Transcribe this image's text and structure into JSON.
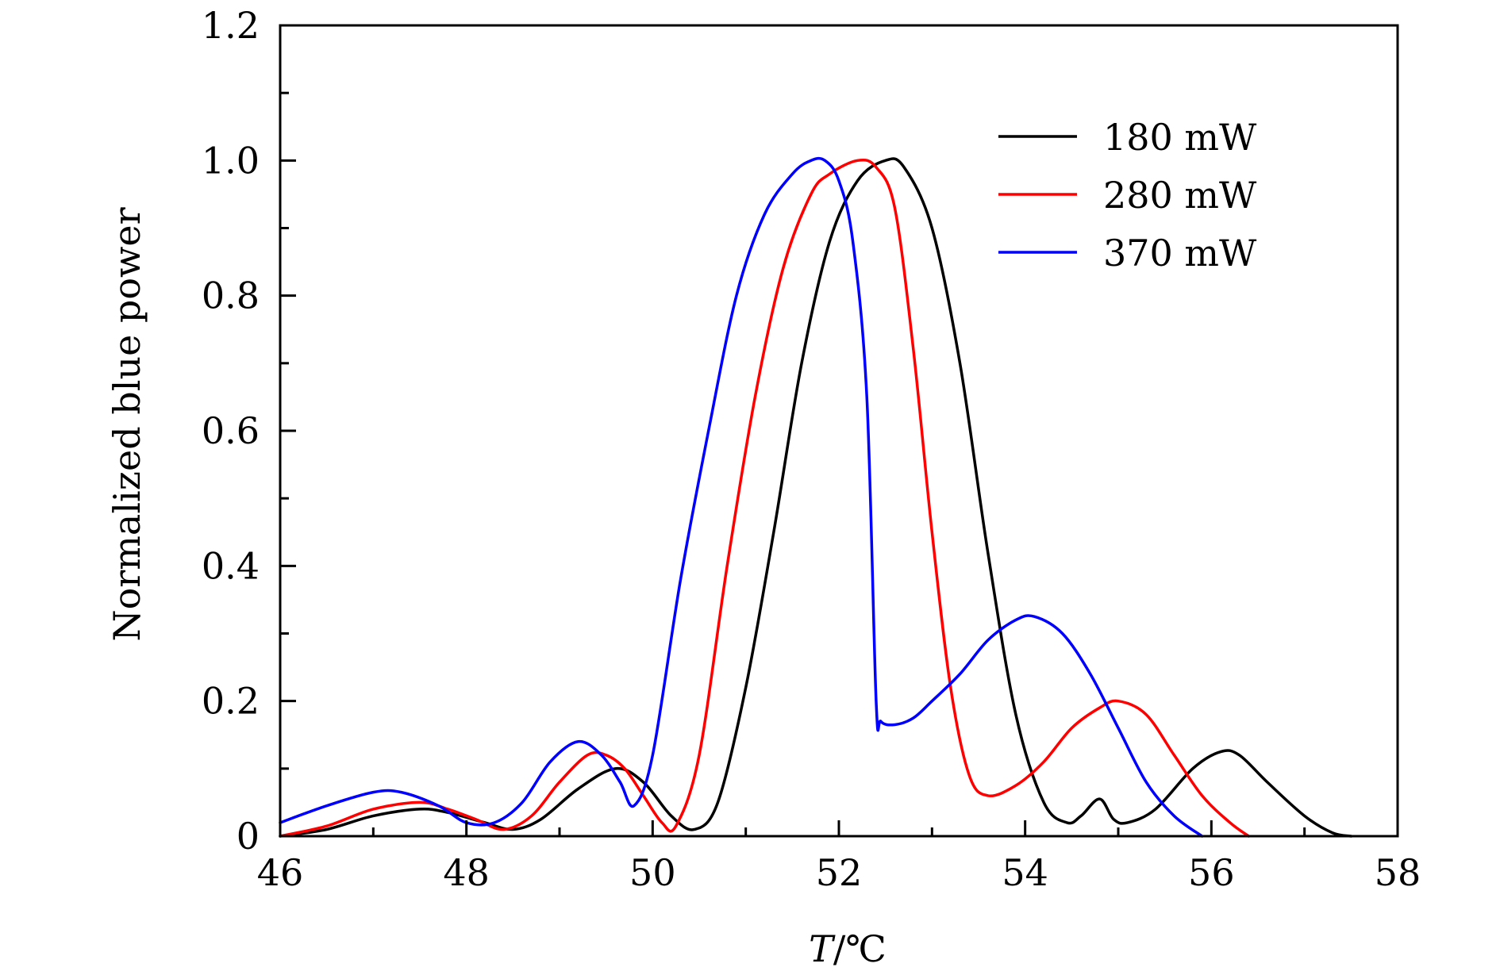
{
  "chart_data": {
    "type": "line",
    "title": "",
    "xlabel": {
      "var": "T",
      "sep": "/",
      "unit": "℃"
    },
    "ylabel": "Normalized blue power",
    "xlim": [
      46,
      58
    ],
    "ylim": [
      0,
      1.2
    ],
    "xticks": [
      46,
      48,
      50,
      52,
      54,
      56,
      58
    ],
    "xtick_labels": [
      "46",
      "48",
      "50",
      "52",
      "54",
      "56",
      "58"
    ],
    "yticks": [
      0,
      0.2,
      0.4,
      0.6,
      0.8,
      1.0,
      1.2
    ],
    "ytick_labels": [
      "0",
      "0.2",
      "0.4",
      "0.6",
      "0.8",
      "1.0",
      "1.2"
    ],
    "x_minor_step": 1,
    "y_minor_step": 0.1,
    "grid": false,
    "legend_position": "top-right",
    "series": [
      {
        "name": "180 mW",
        "color": "#000000",
        "x": [
          46.0,
          46.5,
          47.0,
          47.5,
          47.8,
          48.2,
          48.5,
          48.8,
          49.2,
          49.6,
          49.9,
          50.2,
          50.45,
          50.7,
          51.0,
          51.3,
          51.6,
          51.9,
          52.2,
          52.5,
          52.7,
          53.0,
          53.3,
          53.6,
          53.9,
          54.2,
          54.45,
          54.6,
          54.8,
          54.95,
          55.1,
          55.4,
          55.8,
          56.1,
          56.3,
          56.6,
          57.0,
          57.3,
          57.5
        ],
        "y": [
          0.0,
          0.01,
          0.03,
          0.04,
          0.035,
          0.02,
          0.01,
          0.025,
          0.07,
          0.1,
          0.08,
          0.03,
          0.01,
          0.05,
          0.22,
          0.45,
          0.7,
          0.88,
          0.97,
          1.0,
          0.99,
          0.9,
          0.7,
          0.42,
          0.18,
          0.05,
          0.02,
          0.03,
          0.055,
          0.025,
          0.02,
          0.04,
          0.1,
          0.125,
          0.12,
          0.08,
          0.03,
          0.005,
          0.0
        ]
      },
      {
        "name": "280 mW",
        "color": "#ff0000",
        "x": [
          46.0,
          46.5,
          47.0,
          47.5,
          47.8,
          48.1,
          48.4,
          48.7,
          49.0,
          49.3,
          49.5,
          49.7,
          49.9,
          50.1,
          50.25,
          50.5,
          50.8,
          51.1,
          51.4,
          51.7,
          51.9,
          52.2,
          52.4,
          52.6,
          52.8,
          53.0,
          53.2,
          53.4,
          53.6,
          53.9,
          54.2,
          54.5,
          54.8,
          55.0,
          55.3,
          55.6,
          55.9,
          56.2,
          56.4
        ],
        "y": [
          0.0,
          0.015,
          0.04,
          0.05,
          0.04,
          0.025,
          0.01,
          0.03,
          0.08,
          0.12,
          0.12,
          0.1,
          0.06,
          0.02,
          0.015,
          0.12,
          0.4,
          0.65,
          0.84,
          0.95,
          0.98,
          1.0,
          0.99,
          0.93,
          0.72,
          0.45,
          0.22,
          0.09,
          0.06,
          0.075,
          0.11,
          0.16,
          0.19,
          0.2,
          0.18,
          0.12,
          0.06,
          0.02,
          0.0
        ]
      },
      {
        "name": "370 mW",
        "color": "#0000ff",
        "x": [
          46.0,
          46.5,
          47.0,
          47.3,
          47.7,
          48.0,
          48.3,
          48.6,
          48.9,
          49.2,
          49.45,
          49.65,
          49.8,
          50.0,
          50.3,
          50.6,
          50.9,
          51.2,
          51.5,
          51.7,
          51.85,
          52.0,
          52.15,
          52.3,
          52.4,
          52.45,
          52.6,
          52.8,
          53.0,
          53.3,
          53.6,
          53.9,
          54.1,
          54.4,
          54.7,
          55.0,
          55.3,
          55.6,
          55.9
        ],
        "y": [
          0.02,
          0.045,
          0.065,
          0.065,
          0.045,
          0.02,
          0.02,
          0.05,
          0.11,
          0.14,
          0.12,
          0.08,
          0.045,
          0.12,
          0.38,
          0.6,
          0.8,
          0.92,
          0.98,
          1.0,
          1.0,
          0.97,
          0.88,
          0.65,
          0.2,
          0.17,
          0.165,
          0.175,
          0.2,
          0.24,
          0.29,
          0.32,
          0.325,
          0.3,
          0.24,
          0.16,
          0.08,
          0.03,
          0.0
        ]
      }
    ]
  }
}
